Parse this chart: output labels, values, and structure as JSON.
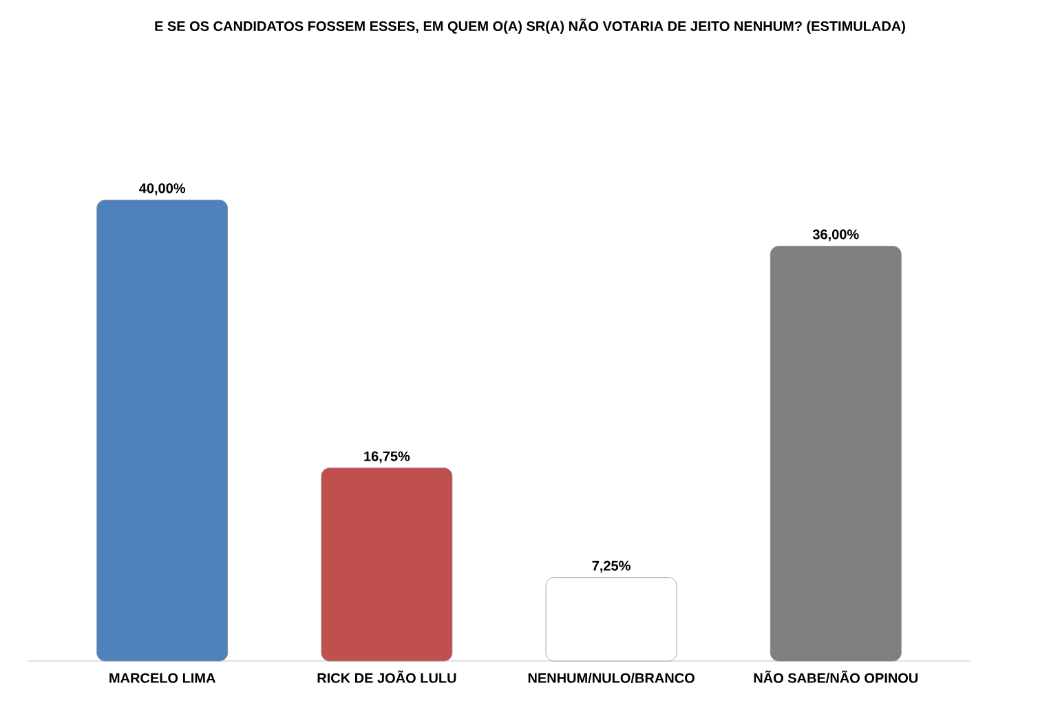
{
  "chart_data": {
    "type": "bar",
    "title": "E SE OS CANDIDATOS FOSSEM ESSES, EM QUEM O(A) SR(A) NÃO VOTARIA DE JEITO NENHUM? (ESTIMULADA)",
    "categories": [
      "MARCELO LIMA",
      "RICK DE JOÃO LULU",
      "NENHUM/NULO/BRANCO",
      "NÃO SABE/NÃO OPINOU"
    ],
    "values": [
      40.0,
      16.75,
      7.25,
      36.0
    ],
    "value_labels": [
      "40,00%",
      "16,75%",
      "7,25%",
      "36,00%"
    ],
    "colors": [
      "#4f81bd",
      "#c0504d",
      "#ffffff",
      "#7f7f7f"
    ]
  }
}
